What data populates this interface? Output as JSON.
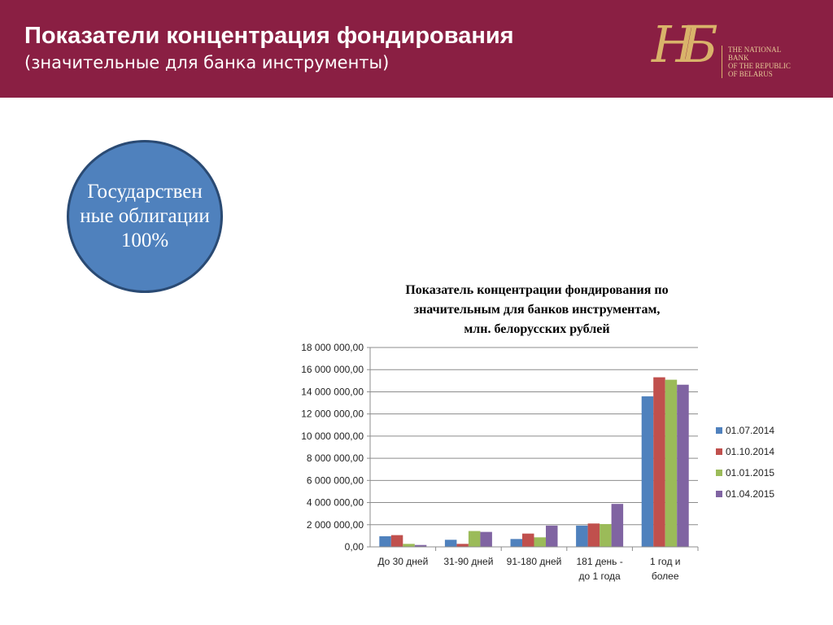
{
  "header": {
    "title": "Показатели концентрация фондирования",
    "subtitle": "(значительные для банка инструменты)"
  },
  "logo": {
    "monogram": "НБ",
    "text": [
      "THE NATIONAL",
      "BANK",
      "OF THE REPUBLIC",
      "OF BELARUS"
    ]
  },
  "circle": {
    "text": "Государствен ные облигации 100%"
  },
  "chart_data": {
    "type": "bar",
    "title": "Показатель концентрации фондирования по значительным для банков инструментам, млн. белорусских рублей",
    "title_lines": [
      "Показатель концентрации фондирования по",
      "значительным для банков инструментам,",
      "млн. белорусских рублей"
    ],
    "categories": [
      "До 30 дней",
      "31-90 дней",
      "91-180 дней",
      "181 день - до 1 года",
      "1 год и более"
    ],
    "category_lines": [
      [
        "До 30 дней"
      ],
      [
        "31-90 дней"
      ],
      [
        "91-180 дней"
      ],
      [
        "181 день -",
        "до 1 года"
      ],
      [
        "1 год и",
        "более"
      ]
    ],
    "ylim": [
      0,
      18000000
    ],
    "yticks": [
      "0,00",
      "2 000 000,00",
      "4 000 000,00",
      "6 000 000,00",
      "8 000 000,00",
      "10 000 000,00",
      "12 000 000,00",
      "14 000 000,00",
      "16 000 000,00",
      "18 000 000,00"
    ],
    "grid": true,
    "legend": "right",
    "series": [
      {
        "name": "01.07.2014",
        "color": "#4f81bd",
        "values": [
          960000,
          640000,
          710000,
          1920000,
          13590000
        ]
      },
      {
        "name": "01.10.2014",
        "color": "#c0504d",
        "values": [
          1060000,
          270000,
          1200000,
          2110000,
          15310000
        ]
      },
      {
        "name": "01.01.2015",
        "color": "#9bbb59",
        "values": [
          270000,
          1430000,
          860000,
          2060000,
          15090000
        ]
      },
      {
        "name": "01.04.2015",
        "color": "#8064a2",
        "values": [
          170000,
          1350000,
          1920000,
          3880000,
          14640000
        ]
      }
    ]
  }
}
